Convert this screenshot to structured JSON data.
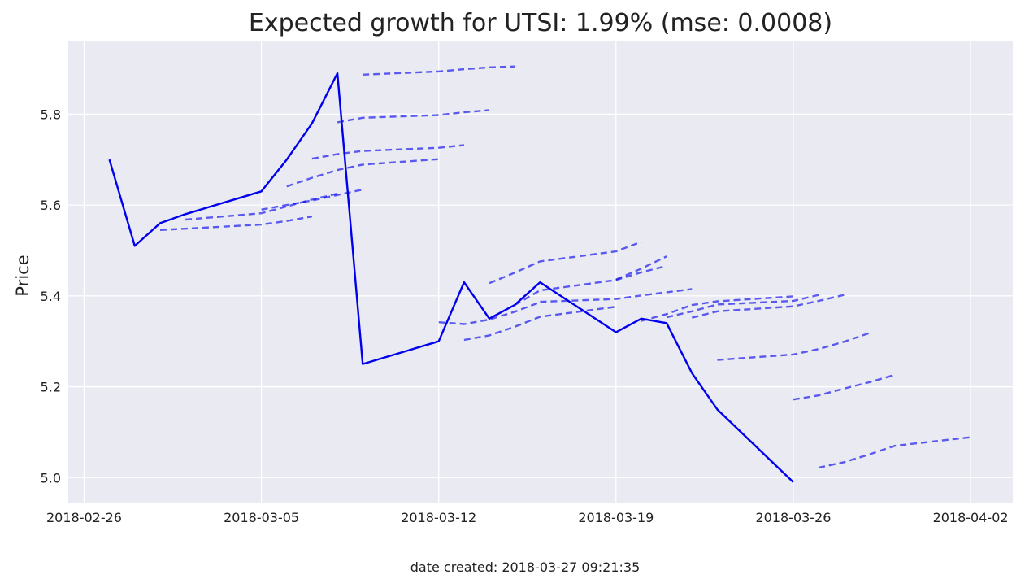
{
  "chart_data": {
    "type": "line",
    "title": "Expected growth for UTSI: 1.99% (mse: 0.0008)",
    "xlabel": "",
    "ylabel": "Price",
    "x_ticks": [
      "2018-02-26",
      "2018-03-05",
      "2018-03-12",
      "2018-03-19",
      "2018-03-26",
      "2018-04-02"
    ],
    "y_ticks": [
      "5.0",
      "5.2",
      "5.4",
      "5.6",
      "5.8"
    ],
    "xlim": [
      "2018-02-25T09:00",
      "2018-04-03T16:00"
    ],
    "ylim": [
      4.945,
      5.96
    ],
    "grid": true,
    "background": "#eaeaf2",
    "series": [
      {
        "style": "solid",
        "color": "#0000ee",
        "points": [
          [
            "2018-02-27",
            5.7
          ],
          [
            "2018-02-28",
            5.51
          ],
          [
            "2018-03-01",
            5.56
          ],
          [
            "2018-03-02",
            5.58
          ],
          [
            "2018-03-05",
            5.63
          ],
          [
            "2018-03-06",
            5.7
          ],
          [
            "2018-03-07",
            5.78
          ],
          [
            "2018-03-08",
            5.89
          ],
          [
            "2018-03-09",
            5.25
          ],
          [
            "2018-03-12",
            5.3
          ],
          [
            "2018-03-13",
            5.43
          ],
          [
            "2018-03-14",
            5.35
          ],
          [
            "2018-03-15",
            5.38
          ],
          [
            "2018-03-16",
            5.43
          ],
          [
            "2018-03-19",
            5.32
          ],
          [
            "2018-03-20",
            5.35
          ],
          [
            "2018-03-21",
            5.34
          ],
          [
            "2018-03-22",
            5.23
          ],
          [
            "2018-03-23",
            5.15
          ],
          [
            "2018-03-26",
            4.99
          ]
        ]
      }
    ],
    "forecasts": {
      "style": "dashed",
      "color": "#0000ee",
      "opacity": 0.62,
      "lines": [
        [
          [
            "2018-03-01",
            5.545
          ],
          [
            "2018-03-02",
            5.548
          ],
          [
            "2018-03-05",
            5.557
          ],
          [
            "2018-03-06",
            5.565
          ],
          [
            "2018-03-07",
            5.575
          ]
        ],
        [
          [
            "2018-03-02",
            5.568
          ],
          [
            "2018-03-05",
            5.582
          ],
          [
            "2018-03-06",
            5.597
          ],
          [
            "2018-03-07",
            5.612
          ],
          [
            "2018-03-08",
            5.625
          ]
        ],
        [
          [
            "2018-03-05",
            5.59
          ],
          [
            "2018-03-06",
            5.6
          ],
          [
            "2018-03-07",
            5.61
          ],
          [
            "2018-03-08",
            5.622
          ],
          [
            "2018-03-09",
            5.634
          ]
        ],
        [
          [
            "2018-03-06",
            5.641
          ],
          [
            "2018-03-07",
            5.66
          ],
          [
            "2018-03-08",
            5.677
          ],
          [
            "2018-03-09",
            5.689
          ],
          [
            "2018-03-12",
            5.701
          ]
        ],
        [
          [
            "2018-03-07",
            5.702
          ],
          [
            "2018-03-08",
            5.712
          ],
          [
            "2018-03-09",
            5.719
          ],
          [
            "2018-03-12",
            5.726
          ],
          [
            "2018-03-13",
            5.732
          ]
        ],
        [
          [
            "2018-03-08",
            5.782
          ],
          [
            "2018-03-09",
            5.792
          ],
          [
            "2018-03-12",
            5.798
          ],
          [
            "2018-03-13",
            5.804
          ],
          [
            "2018-03-14",
            5.809
          ]
        ],
        [
          [
            "2018-03-09",
            5.887
          ],
          [
            "2018-03-12",
            5.894
          ],
          [
            "2018-03-13",
            5.899
          ],
          [
            "2018-03-14",
            5.903
          ],
          [
            "2018-03-15",
            5.905
          ]
        ],
        [
          [
            "2018-03-12",
            5.342
          ],
          [
            "2018-03-13",
            5.338
          ],
          [
            "2018-03-14",
            5.348
          ],
          [
            "2018-03-15",
            5.365
          ],
          [
            "2018-03-16",
            5.386
          ]
        ],
        [
          [
            "2018-03-13",
            5.303
          ],
          [
            "2018-03-14",
            5.313
          ],
          [
            "2018-03-15",
            5.332
          ],
          [
            "2018-03-16",
            5.354
          ],
          [
            "2018-03-19",
            5.376
          ]
        ],
        [
          [
            "2018-03-14",
            5.428
          ],
          [
            "2018-03-15",
            5.451
          ],
          [
            "2018-03-16",
            5.476
          ],
          [
            "2018-03-19",
            5.498
          ],
          [
            "2018-03-20",
            5.519
          ]
        ],
        [
          [
            "2018-03-15",
            5.38
          ],
          [
            "2018-03-16",
            5.412
          ],
          [
            "2018-03-19",
            5.435
          ],
          [
            "2018-03-20",
            5.452
          ],
          [
            "2018-03-21",
            5.466
          ]
        ],
        [
          [
            "2018-03-16",
            5.387
          ],
          [
            "2018-03-19",
            5.393
          ],
          [
            "2018-03-20",
            5.401
          ],
          [
            "2018-03-21",
            5.408
          ],
          [
            "2018-03-22",
            5.415
          ]
        ],
        [
          [
            "2018-03-19",
            5.436
          ],
          [
            "2018-03-20",
            5.46
          ],
          [
            "2018-03-21",
            5.487
          ]
        ],
        [
          [
            "2018-03-20",
            5.345
          ],
          [
            "2018-03-21",
            5.36
          ],
          [
            "2018-03-22",
            5.38
          ],
          [
            "2018-03-23",
            5.388
          ],
          [
            "2018-03-26",
            5.399
          ]
        ],
        [
          [
            "2018-03-21",
            5.353
          ],
          [
            "2018-03-22",
            5.366
          ],
          [
            "2018-03-23",
            5.381
          ],
          [
            "2018-03-26",
            5.389
          ],
          [
            "2018-03-27",
            5.402
          ]
        ],
        [
          [
            "2018-03-22",
            5.352
          ],
          [
            "2018-03-23",
            5.366
          ],
          [
            "2018-03-26",
            5.377
          ],
          [
            "2018-03-27",
            5.389
          ],
          [
            "2018-03-28",
            5.402
          ]
        ],
        [
          [
            "2018-03-23",
            5.259
          ],
          [
            "2018-03-26",
            5.271
          ],
          [
            "2018-03-27",
            5.283
          ],
          [
            "2018-03-28",
            5.299
          ],
          [
            "2018-03-29",
            5.318
          ]
        ],
        [
          [
            "2018-03-26",
            5.172
          ],
          [
            "2018-03-27",
            5.181
          ],
          [
            "2018-03-28",
            5.196
          ],
          [
            "2018-03-29",
            5.21
          ],
          [
            "2018-03-30",
            5.226
          ]
        ],
        [
          [
            "2018-03-27",
            5.022
          ],
          [
            "2018-03-28",
            5.034
          ],
          [
            "2018-03-29",
            5.051
          ],
          [
            "2018-03-30",
            5.07
          ],
          [
            "2018-04-02",
            5.089
          ]
        ]
      ]
    }
  },
  "footer": {
    "date_created": "date created: 2018-03-27 09:21:35"
  }
}
